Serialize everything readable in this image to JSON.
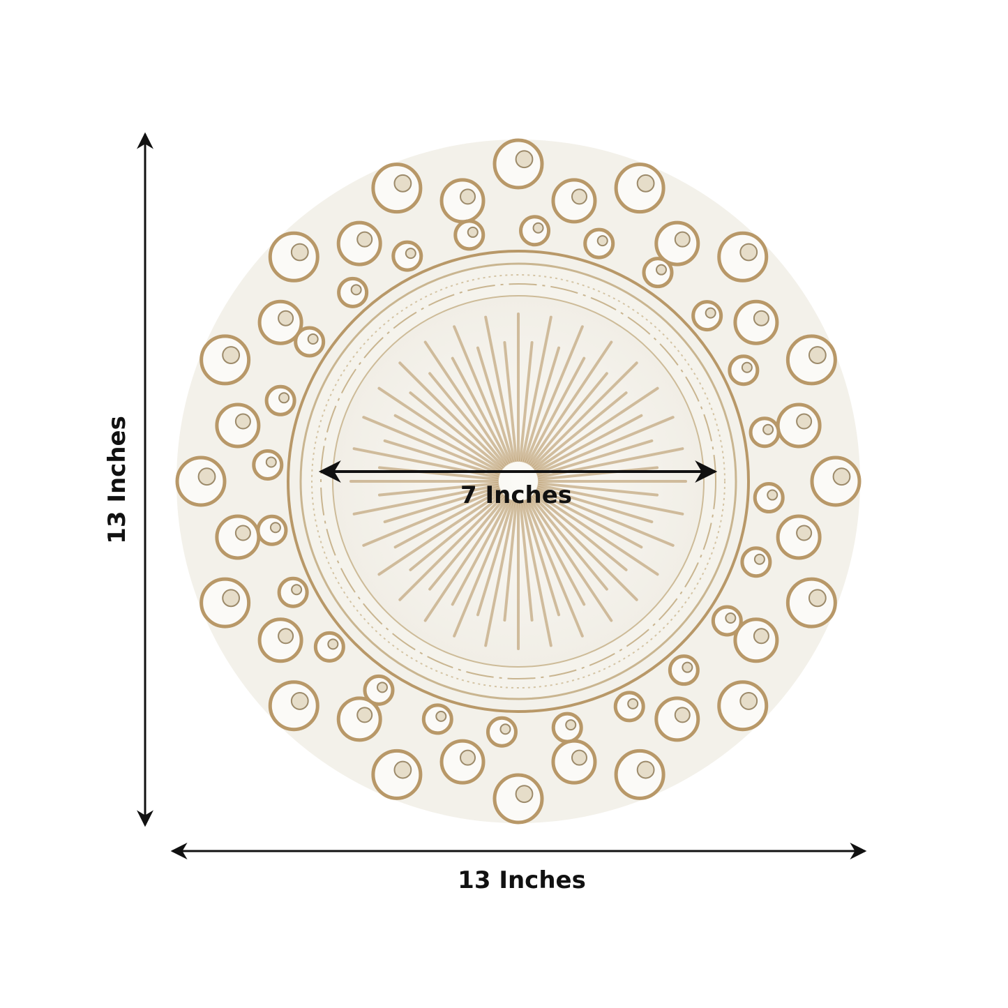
{
  "dimensions": {
    "width_label": "13 Inches",
    "height_label": "13 Inches",
    "inner_diameter_label": "7 Inches"
  },
  "colors": {
    "plate_white": "#f6f4ee",
    "gold_accent": "#b89868",
    "arrow": "#111111"
  }
}
